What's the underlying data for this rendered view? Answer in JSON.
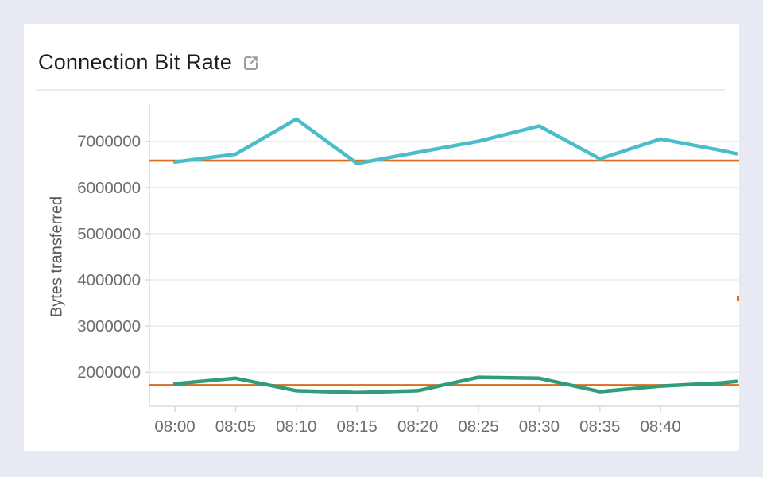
{
  "card": {
    "title": "Connection Bit Rate"
  },
  "colors": {
    "page_background": "#e7eaf2",
    "card_background": "#ffffff",
    "title_text": "#1c1c1c",
    "axis_text": "#6d6d6d",
    "icon_gray": "#9c9c9c",
    "gridline": "#ececec",
    "axis_line": "#dcdcdc"
  },
  "chart_data": {
    "type": "line",
    "title": "Connection Bit Rate",
    "xlabel": "",
    "ylabel": "Bytes transferred",
    "grid": "horizontal",
    "legend": "none",
    "x_tick_labels": [
      "08:00",
      "08:05",
      "08:10",
      "08:15",
      "08:20",
      "08:25",
      "08:30",
      "08:35",
      "08:40"
    ],
    "y_tick_values": [
      2000000,
      3000000,
      4000000,
      5000000,
      6000000,
      7000000
    ],
    "ylim": [
      1280000,
      7820000
    ],
    "x_index": [
      0,
      1,
      2,
      3,
      4,
      5,
      6,
      7,
      8,
      9,
      9.25
    ],
    "series": [
      {
        "name": "teal-line",
        "color": "#4bbcc9",
        "values": [
          6550000,
          6720000,
          7480000,
          6520000,
          6760000,
          7000000,
          7330000,
          6620000,
          7050000,
          6800000,
          6730000
        ]
      },
      {
        "name": "green-line",
        "color": "#2f9c7c",
        "values": [
          1750000,
          1870000,
          1600000,
          1560000,
          1600000,
          1890000,
          1870000,
          1580000,
          1700000,
          1770000,
          1800000
        ]
      }
    ],
    "reference_lines": [
      {
        "name": "upper-threshold-line",
        "color": "#dd6a1d",
        "value": 6580000
      },
      {
        "name": "lower-threshold-line",
        "color": "#dd6a1d",
        "value": 1720000
      }
    ]
  }
}
